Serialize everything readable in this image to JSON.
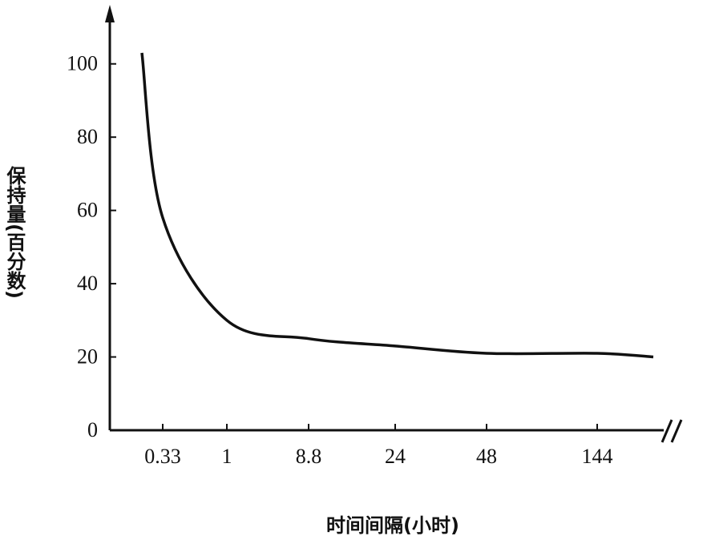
{
  "chart_data": {
    "type": "line",
    "x_label": "时间间隔(小时)",
    "y_label": "保持量(百分数)",
    "categories": [
      null,
      "0.33",
      "1",
      "8.8",
      "24",
      "48",
      "144",
      null
    ],
    "values": [
      103,
      58,
      30,
      25,
      23,
      21,
      21,
      20
    ],
    "color": "#111111",
    "ylim": [
      0,
      110
    ],
    "yticks": [
      0,
      20,
      40,
      60,
      80,
      100
    ]
  }
}
